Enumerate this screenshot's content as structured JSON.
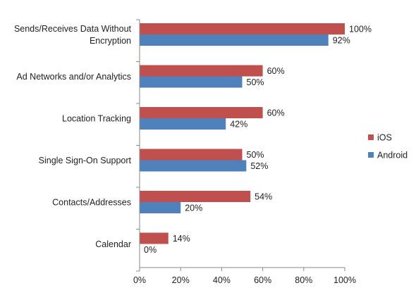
{
  "chart_data": {
    "type": "bar",
    "orientation": "horizontal",
    "categories": [
      "Sends/Receives Data Without Encryption",
      "Ad Networks and/or Analytics",
      "Location Tracking",
      "Single Sign-On Support",
      "Contacts/Addresses",
      "Calendar"
    ],
    "category_label_lines": [
      [
        "Sends/Receives Data Without",
        "Encryption"
      ],
      [
        "Ad Networks and/or Analytics"
      ],
      [
        "Location Tracking"
      ],
      [
        "Single Sign-On Support"
      ],
      [
        "Contacts/Addresses"
      ],
      [
        "Calendar"
      ]
    ],
    "series": [
      {
        "name": "iOS",
        "color": "#c0504d",
        "values": [
          100,
          60,
          60,
          50,
          54,
          14
        ],
        "labels": [
          "100%",
          "60%",
          "60%",
          "50%",
          "54%",
          "14%"
        ]
      },
      {
        "name": "Android",
        "color": "#4f81bd",
        "values": [
          92,
          50,
          42,
          52,
          20,
          0
        ],
        "labels": [
          "92%",
          "50%",
          "42%",
          "52%",
          "20%",
          "0%"
        ]
      }
    ],
    "xlim": [
      0,
      100
    ],
    "xticks": [
      0,
      20,
      40,
      60,
      80,
      100
    ],
    "xtick_labels": [
      "0%",
      "20%",
      "40%",
      "60%",
      "80%",
      "100%"
    ],
    "grid": false,
    "legend": "right",
    "title": "",
    "xlabel": "",
    "ylabel": ""
  }
}
